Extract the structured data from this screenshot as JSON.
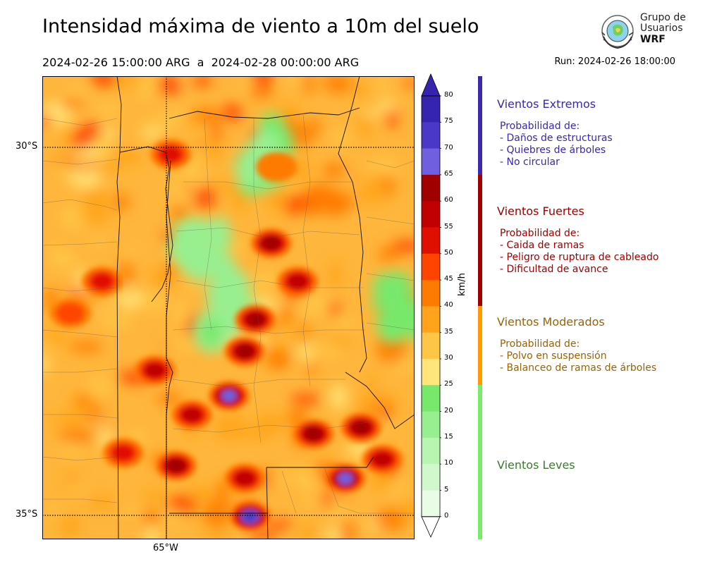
{
  "header": {
    "title": "Intensidad máxima de viento a 10m del suelo",
    "period": "2024-02-26 15:00:00 ARG  a  2024-02-28 00:00:00 ARG",
    "run": "Run: 2024-02-26 18:00:00"
  },
  "logo": {
    "line1": "Grupo de",
    "line2": "Usuarios",
    "line3": "WRF"
  },
  "map": {
    "lat_labels": [
      "30°S",
      "35°S"
    ],
    "lon_labels": [
      "65°W"
    ],
    "hot_spots": [
      {
        "lon": -63.0,
        "lat": -30.7,
        "value": 60
      },
      {
        "lon": -62.5,
        "lat": -31.3,
        "value": 58
      },
      {
        "lon": -63.3,
        "lat": -31.9,
        "value": 62
      },
      {
        "lon": -63.5,
        "lat": -32.4,
        "value": 60
      },
      {
        "lon": -63.8,
        "lat": -33.1,
        "value": 68
      },
      {
        "lon": -64.5,
        "lat": -33.4,
        "value": 55
      },
      {
        "lon": -62.2,
        "lat": -33.7,
        "value": 62
      },
      {
        "lon": -61.3,
        "lat": -33.6,
        "value": 60
      },
      {
        "lon": -60.9,
        "lat": -34.1,
        "value": 58
      },
      {
        "lon": -61.6,
        "lat": -34.4,
        "value": 66
      },
      {
        "lon": -63.5,
        "lat": -34.4,
        "value": 56
      },
      {
        "lon": -64.8,
        "lat": -34.2,
        "value": 60
      },
      {
        "lon": -63.4,
        "lat": -35.0,
        "value": 72
      },
      {
        "lon": -66.2,
        "lat": -31.3,
        "value": 52
      },
      {
        "lon": -66.8,
        "lat": -31.8,
        "value": 48
      },
      {
        "lon": -65.2,
        "lat": -32.7,
        "value": 56
      },
      {
        "lon": -65.8,
        "lat": -34.0,
        "value": 52
      },
      {
        "lon": -64.9,
        "lat": -29.3,
        "value": 50
      },
      {
        "lon": -62.9,
        "lat": -29.5,
        "value": 40
      }
    ],
    "calm_zones": [
      {
        "lon": -64.2,
        "lat": -30.8,
        "value": 18
      },
      {
        "lon": -63.8,
        "lat": -31.8,
        "value": 20
      },
      {
        "lon": -63.3,
        "lat": -29.3,
        "value": 22
      },
      {
        "lon": -60.4,
        "lat": -31.6,
        "value": 22
      }
    ]
  },
  "colorbar": {
    "unit": "km/h",
    "ticks": [
      "0",
      "5",
      "10",
      "15",
      "20",
      "25",
      "30",
      "35",
      "40",
      "45",
      "50",
      "55",
      "60",
      "65",
      "70",
      "75",
      "80"
    ],
    "colors": [
      "#e8fce6",
      "#d0f8cc",
      "#b8f5b0",
      "#98ef90",
      "#78e86c",
      "#ffe57a",
      "#ffc547",
      "#ffa41a",
      "#ff7a00",
      "#ff4400",
      "#e01000",
      "#c00000",
      "#a00000",
      "#7060e0",
      "#4a38c8",
      "#3524b0"
    ]
  },
  "categories": [
    {
      "title": "Vientos Extremos",
      "color": "#3b27b0",
      "bar_color": "#3b27b0",
      "range": [
        65,
        80
      ],
      "lines": [
        "Probabilidad de:",
        "- Daños de estructuras",
        "- Quiebres de árboles",
        "- No circular"
      ]
    },
    {
      "title": "Vientos Fuertes",
      "color": "#a00000",
      "bar_color": "#a00000",
      "range": [
        40,
        65
      ],
      "lines": [
        "Probabilidad de:",
        "- Caida de ramas",
        "- Peligro de ruptura de cableado",
        "- Dificultad de avance"
      ]
    },
    {
      "title": "Vientos Moderados",
      "color": "#a06000",
      "bar_color": "#ff9900",
      "range": [
        25,
        40
      ],
      "lines": [
        "Probabilidad de:",
        "- Polvo en suspensión",
        "- Balanceo de ramas de árboles"
      ]
    },
    {
      "title": "Vientos Leves",
      "color": "#3a7a30",
      "bar_color": "#79ea6a",
      "range": [
        0,
        25
      ],
      "lines": []
    }
  ]
}
